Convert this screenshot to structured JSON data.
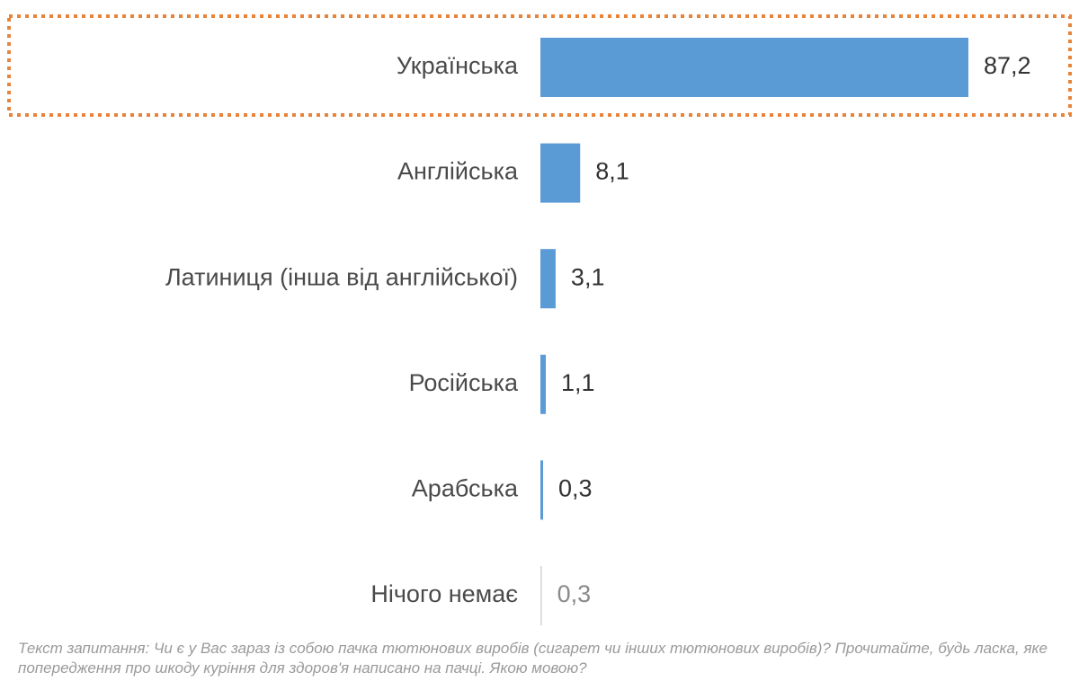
{
  "chart_data": {
    "type": "bar",
    "orientation": "horizontal",
    "categories": [
      "Українська",
      "Англійська",
      "Латиниця (інша від англійської)",
      "Російська",
      "Арабська",
      "Нічого немає"
    ],
    "values": [
      87.2,
      8.1,
      3.1,
      1.1,
      0.3,
      0.3
    ],
    "value_labels": [
      "87,2",
      "8,1",
      "3,1",
      "1,1",
      "0,3",
      "0,3"
    ],
    "xlim": [
      0,
      100
    ],
    "highlighted_category": "Українська",
    "grid": false,
    "legend": "none",
    "colors": {
      "bar": "#5b9bd5",
      "bar_muted": "#d6d6d6",
      "highlight_border": "#e8843a"
    }
  },
  "footnote": {
    "prefix": "Текст запитання: ",
    "text": "Чи є у Вас зараз із собою пачка тютюнових виробів (сигарет чи інших тютюнових виробів)? Прочитайте, будь ласка, яке попередження про шкоду куріння для здоров'я написано на пачці. Якою мовою?"
  }
}
